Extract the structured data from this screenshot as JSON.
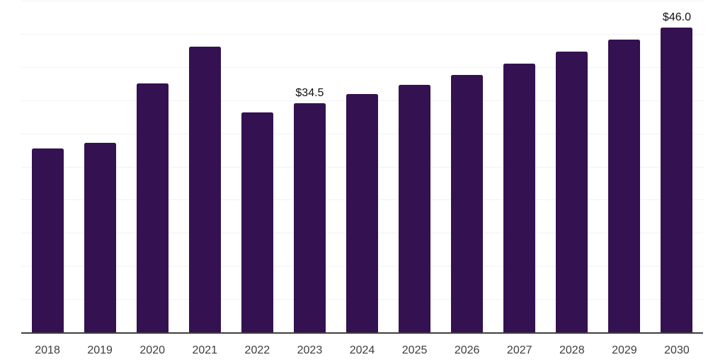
{
  "chart_data": {
    "type": "bar",
    "title": "",
    "xlabel": "",
    "ylabel": "",
    "categories": [
      "2018",
      "2019",
      "2020",
      "2021",
      "2022",
      "2023",
      "2024",
      "2025",
      "2026",
      "2027",
      "2028",
      "2029",
      "2030"
    ],
    "values": [
      27.7,
      28.6,
      37.5,
      43.1,
      33.2,
      34.5,
      35.9,
      37.3,
      38.8,
      40.5,
      42.3,
      44.1,
      46.0
    ],
    "data_labels": [
      {
        "category": "2023",
        "text": "$34.5"
      },
      {
        "category": "2030",
        "text": "$46.0"
      }
    ],
    "ylim": [
      0,
      50
    ],
    "gridline_step": 5,
    "grid": true,
    "legend": false,
    "y_axis_tick_labels_visible": false,
    "colors": {
      "bar": "#341150",
      "gridline": "#f2f2f2",
      "axis_line": "#3f3f3f",
      "tick_label": "#3d3d3d",
      "data_label": "#111111",
      "background": "#ffffff"
    }
  }
}
